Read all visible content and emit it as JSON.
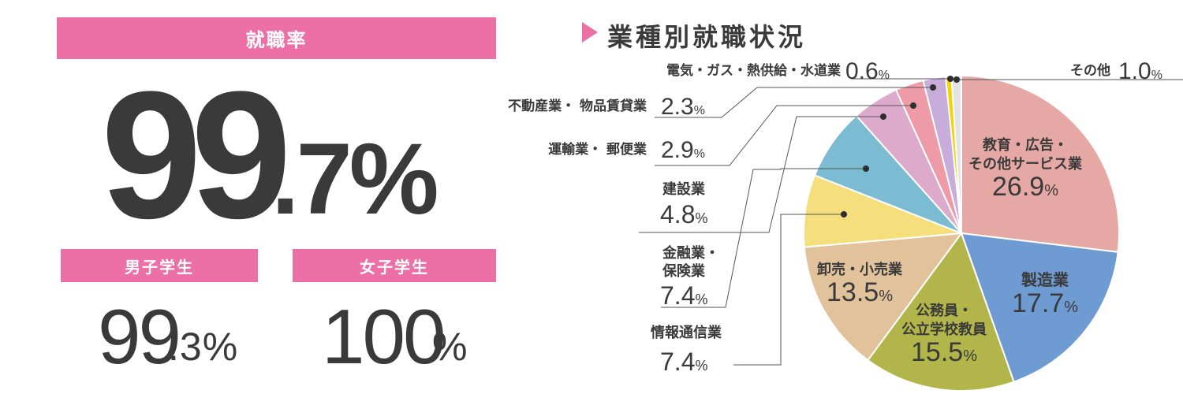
{
  "rate": {
    "label": "就職率",
    "value_int": "99",
    "value_dec": ".7%",
    "male": {
      "label": "男子学生",
      "value_int": "99",
      "value_dec": ".3%"
    },
    "female": {
      "label": "女子学生",
      "value_int": "100",
      "value_pct": "%"
    }
  },
  "pie_title": "業種別就職状況",
  "chart_data": {
    "type": "pie",
    "title": "業種別就職状況",
    "unit": "%",
    "start": "12 o'clock, clockwise",
    "slices": [
      {
        "label": "教育・広告・その他サービス業",
        "lines": [
          "教育・広告・",
          "その他サービス業"
        ],
        "value": 26.9,
        "display": "26.9",
        "color": "#e6a8a4"
      },
      {
        "label": "製造業",
        "lines": [
          "製造業"
        ],
        "value": 17.7,
        "display": "17.7",
        "color": "#6e9bd2"
      },
      {
        "label": "公務員・公立学校教員",
        "lines": [
          "公務員・",
          "公立学校教員"
        ],
        "value": 15.5,
        "display": "15.5",
        "color": "#b2b54a"
      },
      {
        "label": "卸売・小売業",
        "lines": [
          "卸売・小売業"
        ],
        "value": 13.5,
        "display": "13.5",
        "color": "#e2c29a"
      },
      {
        "label": "情報通信業",
        "lines": [
          "情報通信業"
        ],
        "value": 7.4,
        "display": "7.4",
        "color": "#f5df7c"
      },
      {
        "label": "金融業・保険業",
        "lines": [
          "金融業・",
          "保険業"
        ],
        "value": 7.4,
        "display": "7.4",
        "color": "#7bbcd2"
      },
      {
        "label": "建設業",
        "lines": [
          "建設業"
        ],
        "value": 4.8,
        "display": "4.8",
        "color": "#ddaacb"
      },
      {
        "label": "運輸業・郵便業",
        "lines": [
          "運輸業・ 郵便業"
        ],
        "value": 2.9,
        "display": "2.9",
        "color": "#ee9aa7"
      },
      {
        "label": "不動産業・物品賃貸業",
        "lines": [
          "不動産業・ 物品賃貸業"
        ],
        "value": 2.3,
        "display": "2.3",
        "color": "#c8addb"
      },
      {
        "label": "電気・ガス・熱供給・水道業",
        "lines": [
          "電気・ガス・熱供給・水道業"
        ],
        "value": 0.6,
        "display": "0.6",
        "color": "#f6d200"
      },
      {
        "label": "その他",
        "lines": [
          "その他"
        ],
        "value": 1.0,
        "display": "1.0",
        "color": "#e3e3e3"
      }
    ]
  }
}
